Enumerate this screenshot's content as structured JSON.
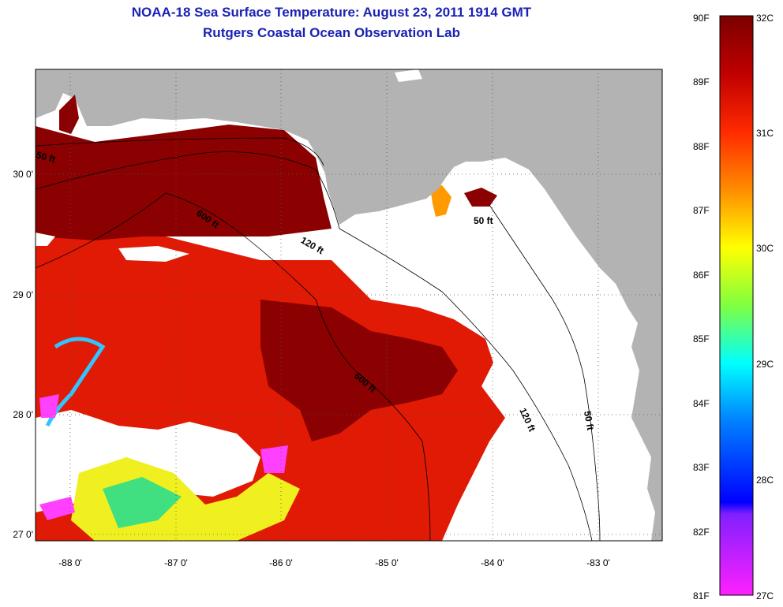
{
  "title": {
    "line1": "NOAA-18 Sea Surface Temperature:  August 23, 2011 1914 GMT",
    "line2": "Rutgers Coastal Ocean Observation Lab"
  },
  "map": {
    "lon_ticks": [
      "-88 0'",
      "-87 0'",
      "-86 0'",
      "-85 0'",
      "-84 0'",
      "-83 0'"
    ],
    "lat_ticks": [
      "30 0'",
      "29 0'",
      "28 0'",
      "27 0'"
    ],
    "contour_labels": [
      "50 ft",
      "600 ft",
      "120 ft",
      "50 ft",
      "600 ft",
      "120 ft",
      "50 ft"
    ],
    "colors": {
      "land": "#b3b3b3",
      "cloud": "#ffffff",
      "sst_hot": "#8b0000",
      "sst_warm": "#e01a05"
    }
  },
  "colorbar": {
    "fahrenheit": [
      "90F",
      "89F",
      "88F",
      "87F",
      "86F",
      "85F",
      "84F",
      "83F",
      "82F",
      "81F"
    ],
    "celsius": [
      "32C",
      "31C",
      "30C",
      "29C",
      "28C",
      "27C"
    ]
  }
}
